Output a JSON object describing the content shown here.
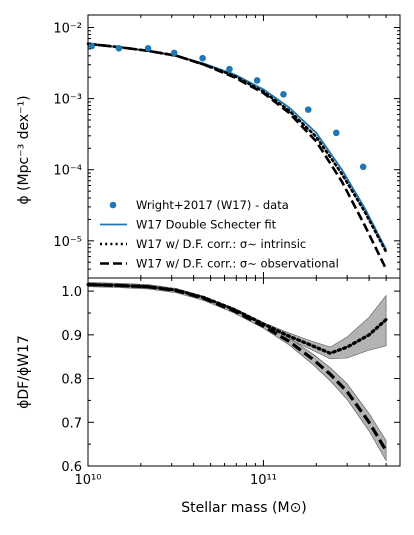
{
  "chart_data": [
    {
      "type": "line",
      "yscale": "log",
      "xscale": "log",
      "xlim": [
        10000000000.0,
        600000000000.0
      ],
      "ylim": [
        3e-06,
        0.015
      ],
      "ylabel": "ϕ (Mpc⁻³ dex⁻¹)",
      "ytick_labels": [
        "10⁻²",
        "10⁻³",
        "10⁻⁴",
        "10⁻⁵"
      ],
      "legend_position": "lower-left",
      "series": [
        {
          "name": "Wright+2017 (W17) - data",
          "style": "points",
          "color": "#1f77b4",
          "x": [
            10500000000.0,
            15000000000.0,
            22000000000.0,
            31000000000.0,
            45000000000.0,
            64000000000.0,
            92000000000.0,
            130000000000.0,
            180000000000.0,
            260000000000.0,
            370000000000.0
          ],
          "y": [
            0.0055,
            0.0051,
            0.0051,
            0.0044,
            0.0037,
            0.0026,
            0.0018,
            0.00115,
            0.0007,
            0.00033,
            0.00011
          ]
        },
        {
          "name": "W17 Double Schecter fit",
          "style": "solid",
          "color": "#1f77b4",
          "x": [
            10000000000.0,
            15000000000.0,
            22000000000.0,
            32000000000.0,
            46000000000.0,
            68000000000.0,
            100000000000.0,
            140000000000.0,
            200000000000.0,
            280000000000.0,
            380000000000.0,
            500000000000.0
          ],
          "y": [
            0.0058,
            0.0053,
            0.0047,
            0.004,
            0.0031,
            0.0022,
            0.00135,
            0.00075,
            0.00033,
            0.0001,
            2.8e-05,
            7.5e-06
          ]
        },
        {
          "name": "W17 w/ D.F. corr.: σ∼ intrinsic",
          "style": "dotted",
          "color": "#000000",
          "x": [
            10000000000.0,
            15000000000.0,
            22000000000.0,
            32000000000.0,
            46000000000.0,
            68000000000.0,
            100000000000.0,
            140000000000.0,
            200000000000.0,
            280000000000.0,
            380000000000.0,
            500000000000.0
          ],
          "y": [
            0.0059,
            0.0053,
            0.0047,
            0.004,
            0.003,
            0.0021,
            0.00125,
            0.00068,
            0.00029,
            8.7e-05,
            2.5e-05,
            7e-06
          ]
        },
        {
          "name": "W17 w/ D.F. corr.: σ∼ observational",
          "style": "dashed",
          "color": "#000000",
          "x": [
            10000000000.0,
            15000000000.0,
            22000000000.0,
            32000000000.0,
            46000000000.0,
            68000000000.0,
            100000000000.0,
            140000000000.0,
            200000000000.0,
            280000000000.0,
            380000000000.0,
            500000000000.0
          ],
          "y": [
            0.0059,
            0.0053,
            0.0047,
            0.004,
            0.003,
            0.002,
            0.0012,
            0.00063,
            0.00025,
            6.8e-05,
            1.6e-05,
            4e-06
          ]
        }
      ]
    },
    {
      "type": "line",
      "xscale": "log",
      "xlim": [
        10000000000.0,
        600000000000.0
      ],
      "ylim": [
        0.6,
        1.03
      ],
      "xlabel": "Stellar mass (M⊙)",
      "ylabel": "ϕDF/ϕW17",
      "ytick_labels": [
        "1.0",
        "0.9",
        "0.8",
        "0.7",
        "0.6"
      ],
      "xtick_labels": [
        "10¹⁰",
        "10¹¹"
      ],
      "series": [
        {
          "name": "W17 w/ D.F. corr.: σ∼ intrinsic",
          "style": "dotted",
          "color": "#000000",
          "x": [
            10000000000.0,
            15000000000.0,
            22000000000.0,
            32000000000.0,
            46000000000.0,
            68000000000.0,
            100000000000.0,
            140000000000.0,
            190000000000.0,
            240000000000.0,
            300000000000.0,
            400000000000.0,
            500000000000.0
          ],
          "y": [
            1.015,
            1.013,
            1.01,
            1.002,
            0.985,
            0.958,
            0.925,
            0.897,
            0.875,
            0.858,
            0.872,
            0.9,
            0.935
          ],
          "band_low": [
            1.013,
            1.011,
            1.008,
            1.0,
            0.983,
            0.955,
            0.922,
            0.89,
            0.865,
            0.845,
            0.847,
            0.865,
            0.875
          ],
          "band_high": [
            1.017,
            1.015,
            1.012,
            1.004,
            0.987,
            0.961,
            0.928,
            0.904,
            0.885,
            0.872,
            0.895,
            0.94,
            0.99
          ]
        },
        {
          "name": "W17 w/ D.F. corr.: σ∼ observational",
          "style": "dashed",
          "color": "#000000",
          "x": [
            10000000000.0,
            15000000000.0,
            22000000000.0,
            32000000000.0,
            46000000000.0,
            68000000000.0,
            100000000000.0,
            140000000000.0,
            190000000000.0,
            240000000000.0,
            300000000000.0,
            400000000000.0,
            500000000000.0
          ],
          "y": [
            1.015,
            1.013,
            1.01,
            1.001,
            0.983,
            0.955,
            0.92,
            0.885,
            0.845,
            0.81,
            0.77,
            0.7,
            0.635
          ],
          "band_low": [
            1.01,
            1.008,
            1.005,
            0.996,
            0.978,
            0.95,
            0.915,
            0.877,
            0.833,
            0.795,
            0.752,
            0.68,
            0.612
          ],
          "band_high": [
            1.02,
            1.018,
            1.015,
            1.006,
            0.988,
            0.96,
            0.925,
            0.893,
            0.857,
            0.825,
            0.788,
            0.72,
            0.658
          ]
        }
      ]
    }
  ]
}
